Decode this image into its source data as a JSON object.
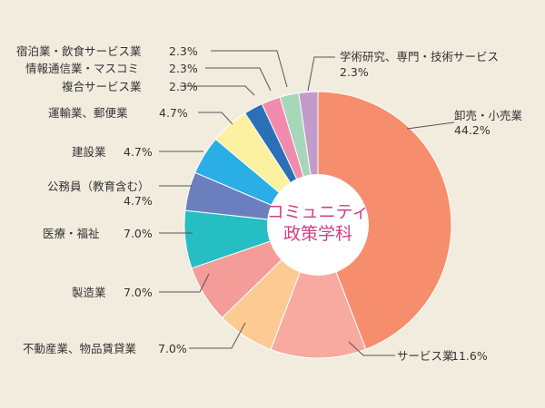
{
  "chart_data": {
    "type": "pie",
    "center_title": [
      "コミュニティ",
      "政策学科"
    ],
    "slices": [
      {
        "label": "卸売・小売業",
        "value": 44.2,
        "value_label": "44.2%",
        "color": "#f68e6e"
      },
      {
        "label": "サービス業",
        "value": 11.6,
        "value_label": "11.6%",
        "color": "#f8a9a0"
      },
      {
        "label": "不動産業、物品賃貸業",
        "value": 7.0,
        "value_label": "7.0%",
        "color": "#fccb94"
      },
      {
        "label": "製造業",
        "value": 7.0,
        "value_label": "7.0%",
        "color": "#f49c98"
      },
      {
        "label": "医療・福祉",
        "value": 7.0,
        "value_label": "7.0%",
        "color": "#24bec3"
      },
      {
        "label": "公務員（教育含む）",
        "value": 4.7,
        "value_label": "4.7%",
        "color": "#6b7fbe"
      },
      {
        "label": "建設業",
        "value": 4.7,
        "value_label": "4.7%",
        "color": "#29aee5"
      },
      {
        "label": "運輸業、郵便業",
        "value": 4.7,
        "value_label": "4.7%",
        "color": "#fbf1a0"
      },
      {
        "label": "複合サービス業",
        "value": 2.3,
        "value_label": "2.3%",
        "color": "#2b70b7"
      },
      {
        "label": "情報通信業・マスコミ",
        "value": 2.3,
        "value_label": "2.3%",
        "color": "#f18bae"
      },
      {
        "label": "宿泊業・飲食サービス業",
        "value": 2.3,
        "value_label": "2.3%",
        "color": "#a7d6b8"
      },
      {
        "label": "学術研究、専門・技術サービス",
        "value": 2.3,
        "value_label": "2.3%",
        "color": "#c29bcb"
      }
    ]
  }
}
